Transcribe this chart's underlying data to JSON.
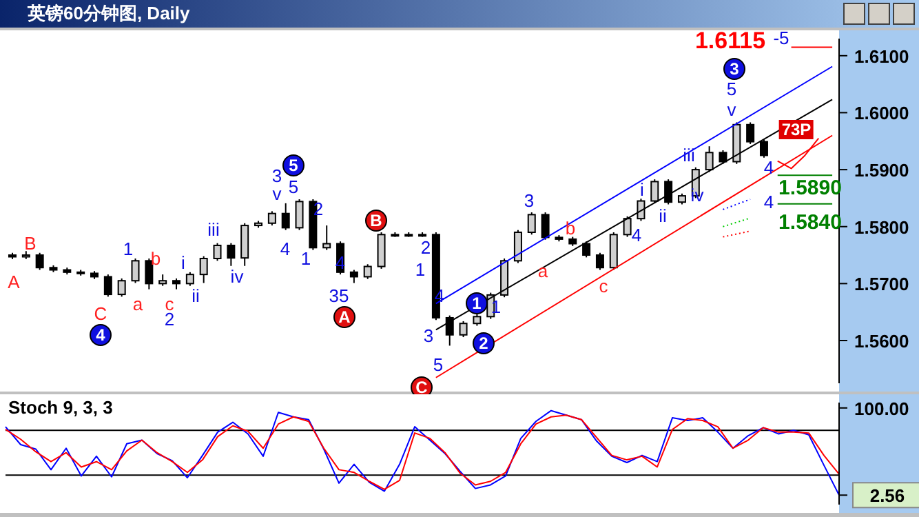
{
  "chart_data": [
    {
      "type": "candlestick",
      "title": "英镑60分钟图, Daily",
      "categories": [
        null,
        null,
        null,
        null,
        null,
        null,
        null,
        null,
        null,
        null,
        null,
        null,
        null,
        null,
        null,
        null,
        null,
        null,
        null,
        null,
        null,
        null,
        null,
        null,
        null,
        null,
        null,
        null,
        null,
        null,
        null,
        null,
        null,
        null,
        null,
        null,
        null,
        null,
        null,
        null,
        null,
        null,
        null,
        null,
        null,
        null,
        null,
        null,
        null,
        null,
        null,
        null,
        null,
        null,
        null,
        null,
        null,
        null,
        null,
        null,
        null
      ],
      "ohlc": [
        [
          1.575,
          1.5754,
          1.5743,
          1.5747
        ],
        [
          1.5747,
          1.5757,
          1.5743,
          1.575
        ],
        [
          1.575,
          1.5754,
          1.5724,
          1.5728
        ],
        [
          1.5728,
          1.5732,
          1.572,
          1.5724
        ],
        [
          1.5724,
          1.5728,
          1.5716,
          1.572
        ],
        [
          1.572,
          1.5724,
          1.5714,
          1.5718
        ],
        [
          1.5718,
          1.5722,
          1.5708,
          1.5712
        ],
        [
          1.5712,
          1.5716,
          1.5677,
          1.5681
        ],
        [
          1.5681,
          1.5709,
          1.5677,
          1.5705
        ],
        [
          1.5705,
          1.5744,
          1.5701,
          1.574
        ],
        [
          1.574,
          1.5744,
          1.569,
          1.57
        ],
        [
          1.57,
          1.5716,
          1.5696,
          1.5705
        ],
        [
          1.5705,
          1.5709,
          1.569,
          1.57
        ],
        [
          1.57,
          1.572,
          1.5696,
          1.5716
        ],
        [
          1.5716,
          1.5748,
          1.5701,
          1.5744
        ],
        [
          1.5744,
          1.5771,
          1.574,
          1.5767
        ],
        [
          1.5767,
          1.5771,
          1.5731,
          1.5745
        ],
        [
          1.5745,
          1.5806,
          1.5731,
          1.5802
        ],
        [
          1.5802,
          1.581,
          1.5798,
          1.5806
        ],
        [
          1.5806,
          1.5827,
          1.5802,
          1.5823
        ],
        [
          1.5823,
          1.5841,
          1.5794,
          1.5798
        ],
        [
          1.5798,
          1.5848,
          1.5794,
          1.5844
        ],
        [
          1.5844,
          1.5848,
          1.5759,
          1.5763
        ],
        [
          1.5763,
          1.5802,
          1.5759,
          1.577
        ],
        [
          1.577,
          1.5774,
          1.5716,
          1.572
        ],
        [
          1.572,
          1.5724,
          1.5701,
          1.5712
        ],
        [
          1.5712,
          1.5734,
          1.5708,
          1.573
        ],
        [
          1.573,
          1.579,
          1.5726,
          1.5786
        ],
        [
          1.5786,
          1.579,
          1.5782,
          1.5786
        ],
        [
          1.5786,
          1.579,
          1.5782,
          1.5786
        ],
        [
          1.5786,
          1.579,
          1.5782,
          1.5786
        ],
        [
          1.5786,
          1.579,
          1.5636,
          1.564
        ],
        [
          1.564,
          1.5644,
          1.5591,
          1.561
        ],
        [
          1.561,
          1.5634,
          1.5606,
          1.563
        ],
        [
          1.563,
          1.5646,
          1.5626,
          1.5642
        ],
        [
          1.5642,
          1.5684,
          1.5638,
          1.568
        ],
        [
          1.568,
          1.5744,
          1.5676,
          1.574
        ],
        [
          1.574,
          1.5794,
          1.5736,
          1.579
        ],
        [
          1.579,
          1.5825,
          1.5786,
          1.5821
        ],
        [
          1.5821,
          1.5825,
          1.5777,
          1.5781
        ],
        [
          1.5781,
          1.5785,
          1.5774,
          1.5778
        ],
        [
          1.5778,
          1.5782,
          1.5766,
          1.577
        ],
        [
          1.577,
          1.5774,
          1.5746,
          1.575
        ],
        [
          1.575,
          1.5754,
          1.5724,
          1.5728
        ],
        [
          1.5728,
          1.579,
          1.5724,
          1.5786
        ],
        [
          1.5786,
          1.5818,
          1.5782,
          1.5814
        ],
        [
          1.5814,
          1.5849,
          1.581,
          1.5845
        ],
        [
          1.5845,
          1.5883,
          1.5841,
          1.5879
        ],
        [
          1.5879,
          1.5883,
          1.5839,
          1.5843
        ],
        [
          1.5843,
          1.5858,
          1.5839,
          1.5854
        ],
        [
          1.5854,
          1.5904,
          1.585,
          1.59
        ],
        [
          1.59,
          1.5941,
          1.5896,
          1.593
        ],
        [
          1.593,
          1.5934,
          1.591,
          1.5914
        ],
        [
          1.5914,
          1.5983,
          1.591,
          1.5979
        ],
        [
          1.5979,
          1.5983,
          1.5945,
          1.5949
        ],
        [
          1.5949,
          1.5953,
          1.5921,
          1.5925
        ],
        null,
        null,
        null,
        null,
        null
      ],
      "ylim": [
        1.5525,
        1.613
      ],
      "yticks": [
        {
          "value": 1.56,
          "label": "1.5600"
        },
        {
          "value": 1.57,
          "label": "1.5700"
        },
        {
          "value": 1.58,
          "label": "1.5800"
        },
        {
          "value": 1.59,
          "label": "1.5900"
        },
        {
          "value": 1.6,
          "label": "1.6000"
        },
        {
          "value": 1.61,
          "label": "1.6100"
        }
      ],
      "tick_labels": "y",
      "series": [
        {
          "type": "line",
          "color": "#0000ff",
          "values": [
            null,
            null,
            null,
            null,
            null,
            null,
            null,
            null,
            null,
            null,
            null,
            null,
            null,
            null,
            null,
            null,
            null,
            null,
            null,
            null,
            null,
            null,
            null,
            null,
            null,
            null,
            null,
            null,
            null,
            null,
            null,
            1.5665,
            null,
            null,
            null,
            null,
            null,
            null,
            null,
            null,
            null,
            null,
            null,
            null,
            null,
            null,
            null,
            null,
            null,
            null,
            null,
            null,
            null,
            null,
            null,
            null,
            null,
            null,
            null,
            null,
            1.6081
          ]
        },
        {
          "type": "line",
          "color": "#000000",
          "values": [
            null,
            null,
            null,
            null,
            null,
            null,
            null,
            null,
            null,
            null,
            null,
            null,
            null,
            null,
            null,
            null,
            null,
            null,
            null,
            null,
            null,
            null,
            null,
            null,
            null,
            null,
            null,
            null,
            null,
            null,
            null,
            1.5619,
            null,
            null,
            null,
            null,
            null,
            null,
            null,
            null,
            null,
            null,
            null,
            null,
            null,
            null,
            null,
            null,
            null,
            null,
            null,
            null,
            null,
            null,
            null,
            null,
            null,
            null,
            null,
            null,
            1.6023
          ]
        },
        {
          "type": "line",
          "color": "#ff0000",
          "values": [
            null,
            null,
            null,
            null,
            null,
            null,
            null,
            null,
            null,
            null,
            null,
            null,
            null,
            null,
            null,
            null,
            null,
            null,
            null,
            null,
            null,
            null,
            null,
            null,
            null,
            null,
            null,
            null,
            null,
            null,
            null,
            1.5535,
            null,
            null,
            null,
            null,
            null,
            null,
            null,
            null,
            null,
            null,
            null,
            null,
            null,
            null,
            null,
            null,
            null,
            null,
            null,
            null,
            null,
            null,
            null,
            null,
            null,
            null,
            null,
            null,
            1.596
          ]
        },
        {
          "type": "line",
          "color": "#ff0000",
          "values": [
            null,
            null,
            null,
            null,
            null,
            null,
            null,
            null,
            null,
            null,
            null,
            null,
            null,
            null,
            null,
            null,
            null,
            null,
            null,
            null,
            null,
            null,
            null,
            null,
            null,
            null,
            null,
            null,
            null,
            null,
            null,
            null,
            null,
            null,
            null,
            null,
            null,
            null,
            null,
            null,
            null,
            null,
            null,
            null,
            null,
            null,
            null,
            null,
            null,
            null,
            null,
            null,
            null,
            null,
            null,
            null,
            null,
            1.6115,
            null,
            null,
            1.6115
          ]
        },
        {
          "type": "line",
          "color": "#008000",
          "values": [
            null,
            null,
            null,
            null,
            null,
            null,
            null,
            null,
            null,
            null,
            null,
            null,
            null,
            null,
            null,
            null,
            null,
            null,
            null,
            null,
            null,
            null,
            null,
            null,
            null,
            null,
            null,
            null,
            null,
            null,
            null,
            null,
            null,
            null,
            null,
            null,
            null,
            null,
            null,
            null,
            null,
            null,
            null,
            null,
            null,
            null,
            null,
            null,
            null,
            null,
            null,
            null,
            null,
            null,
            null,
            null,
            1.589,
            null,
            null,
            null,
            1.589
          ]
        },
        {
          "type": "line",
          "color": "#008000",
          "values": [
            null,
            null,
            null,
            null,
            null,
            null,
            null,
            null,
            null,
            null,
            null,
            null,
            null,
            null,
            null,
            null,
            null,
            null,
            null,
            null,
            null,
            null,
            null,
            null,
            null,
            null,
            null,
            null,
            null,
            null,
            null,
            null,
            null,
            null,
            null,
            null,
            null,
            null,
            null,
            null,
            null,
            null,
            null,
            null,
            null,
            null,
            null,
            null,
            null,
            null,
            null,
            null,
            null,
            null,
            null,
            null,
            1.584,
            null,
            null,
            null,
            1.584
          ]
        },
        {
          "type": "line",
          "color": "#0000ff",
          "line_style": "dotted",
          "values": [
            null,
            null,
            null,
            null,
            null,
            null,
            null,
            null,
            null,
            null,
            null,
            null,
            null,
            null,
            null,
            null,
            null,
            null,
            null,
            null,
            null,
            null,
            null,
            null,
            null,
            null,
            null,
            null,
            null,
            null,
            null,
            null,
            null,
            null,
            null,
            null,
            null,
            null,
            null,
            null,
            null,
            null,
            null,
            null,
            null,
            null,
            null,
            null,
            null,
            null,
            null,
            null,
            1.583,
            null,
            1.5848,
            null,
            null,
            null,
            null,
            null,
            null
          ]
        },
        {
          "type": "line",
          "color": "#00cc00",
          "line_style": "dotted",
          "values": [
            null,
            null,
            null,
            null,
            null,
            null,
            null,
            null,
            null,
            null,
            null,
            null,
            null,
            null,
            null,
            null,
            null,
            null,
            null,
            null,
            null,
            null,
            null,
            null,
            null,
            null,
            null,
            null,
            null,
            null,
            null,
            null,
            null,
            null,
            null,
            null,
            null,
            null,
            null,
            null,
            null,
            null,
            null,
            null,
            null,
            null,
            null,
            null,
            null,
            null,
            null,
            null,
            1.58,
            null,
            1.5815,
            null,
            null,
            null,
            null,
            null,
            null
          ]
        },
        {
          "type": "line",
          "color": "#ff0000",
          "line_style": "dotted",
          "values": [
            null,
            null,
            null,
            null,
            null,
            null,
            null,
            null,
            null,
            null,
            null,
            null,
            null,
            null,
            null,
            null,
            null,
            null,
            null,
            null,
            null,
            null,
            null,
            null,
            null,
            null,
            null,
            null,
            null,
            null,
            null,
            null,
            null,
            null,
            null,
            null,
            null,
            null,
            null,
            null,
            null,
            null,
            null,
            null,
            null,
            null,
            null,
            null,
            null,
            null,
            null,
            null,
            1.5782,
            null,
            1.5792,
            null,
            null,
            null,
            null,
            null,
            null
          ]
        },
        {
          "type": "line",
          "color": "#ff0000",
          "values": [
            null,
            null,
            null,
            null,
            null,
            null,
            null,
            null,
            null,
            null,
            null,
            null,
            null,
            null,
            null,
            null,
            null,
            null,
            null,
            null,
            null,
            null,
            null,
            null,
            null,
            null,
            null,
            null,
            null,
            null,
            null,
            null,
            null,
            null,
            null,
            null,
            null,
            null,
            null,
            null,
            null,
            null,
            null,
            null,
            null,
            null,
            null,
            null,
            null,
            null,
            null,
            null,
            null,
            null,
            null,
            null,
            1.5915,
            1.5902,
            1.5925,
            1.5955,
            null
          ]
        }
      ],
      "annotations": [
        "B",
        "A",
        "C",
        "4",
        "1",
        "a",
        "b",
        "c",
        "2",
        "i",
        "ii",
        "iii",
        "iv",
        "3",
        "v",
        "5",
        "5",
        "4",
        "2",
        "1",
        "4",
        "35",
        "A",
        "B",
        "2",
        "1",
        "4",
        "3",
        "5",
        "C",
        "1",
        "1",
        "2",
        "3",
        "a",
        "b",
        "c",
        "4",
        "i",
        "ii",
        "iii",
        "iv",
        "3",
        "5",
        "v",
        "1.6115",
        "-5",
        "4",
        "1.5890",
        "4",
        "1.5840",
        "73P"
      ]
    },
    {
      "type": "line",
      "title": "Stoch 9, 3, 3",
      "categories": [
        null,
        null,
        null,
        null,
        null,
        null,
        null,
        null,
        null,
        null,
        null,
        null,
        null,
        null,
        null,
        null,
        null,
        null,
        null,
        null,
        null,
        null,
        null,
        null,
        null,
        null,
        null,
        null,
        null,
        null,
        null,
        null,
        null,
        null,
        null,
        null,
        null,
        null,
        null,
        null,
        null,
        null,
        null,
        null,
        null,
        null,
        null,
        null,
        null,
        null,
        null,
        null,
        null,
        null,
        null,
        null
      ],
      "series": [
        {
          "color": "#0000ff",
          "values": [
            79,
            59,
            54,
            31,
            55,
            24,
            46,
            23,
            60,
            64,
            49,
            41,
            22,
            47,
            73,
            84,
            71,
            46,
            95,
            90,
            87,
            54,
            16,
            37,
            17,
            7,
            37,
            79,
            64,
            49,
            29,
            10,
            14,
            24,
            66,
            85,
            97,
            92,
            87,
            63,
            46,
            39,
            47,
            40,
            89,
            86,
            89,
            73,
            55,
            69,
            78,
            71,
            75,
            70,
            36,
            2.56
          ]
        },
        {
          "color": "#ff0000",
          "values": [
            76,
            65,
            51,
            40,
            50,
            34,
            40,
            31,
            52,
            64,
            50,
            40,
            28,
            42,
            68,
            80,
            74,
            55,
            82,
            90,
            85,
            55,
            31,
            28,
            18,
            9,
            19,
            72,
            66,
            50,
            27,
            14,
            18,
            28,
            60,
            82,
            90,
            92,
            87,
            67,
            47,
            42,
            46,
            34,
            76,
            88,
            86,
            79,
            55,
            64,
            78,
            73,
            73,
            72,
            47,
            26
          ]
        }
      ],
      "ylim": [
        -8,
        106
      ],
      "yticks": [
        {
          "value": 100,
          "label": "100.00"
        },
        {
          "value": 2.56,
          "label": "2.56"
        }
      ],
      "tick_labels": "y",
      "ref_lines": [
        {
          "axis": "y",
          "value": 75,
          "color": "#000000"
        },
        {
          "axis": "y",
          "value": 25,
          "color": "#000000"
        }
      ]
    }
  ]
}
